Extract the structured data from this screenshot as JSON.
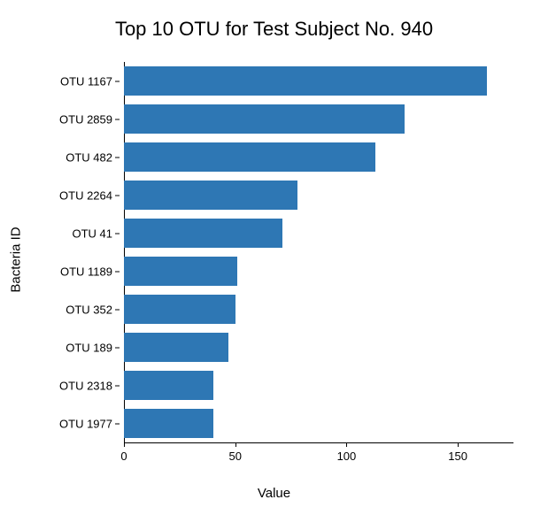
{
  "chart": {
    "type": "bar-horizontal",
    "title": "Top 10 OTU for Test Subject No. 940",
    "title_fontsize": 22,
    "x_axis_title": "Value",
    "y_axis_title": "Bacteria ID",
    "axis_title_fontsize": 15,
    "label_fontsize": 13,
    "background_color": "#ffffff",
    "bar_color": "#2e77b4",
    "axis_color": "#000000",
    "text_color": "#000000",
    "x_domain_max": 175,
    "x_ticks": [
      {
        "value": 0,
        "label": "0"
      },
      {
        "value": 50,
        "label": "50"
      },
      {
        "value": 100,
        "label": "100"
      },
      {
        "value": 150,
        "label": "150"
      }
    ],
    "bar_gap_ratio": 0.25,
    "categories": [
      {
        "label": "OTU 1167",
        "value": 163
      },
      {
        "label": "OTU 2859",
        "value": 126
      },
      {
        "label": "OTU 482",
        "value": 113
      },
      {
        "label": "OTU 2264",
        "value": 78
      },
      {
        "label": "OTU 41",
        "value": 71
      },
      {
        "label": "OTU 1189",
        "value": 51
      },
      {
        "label": "OTU 352",
        "value": 50
      },
      {
        "label": "OTU 189",
        "value": 47
      },
      {
        "label": "OTU 2318",
        "value": 40
      },
      {
        "label": "OTU 1977",
        "value": 40
      }
    ]
  }
}
